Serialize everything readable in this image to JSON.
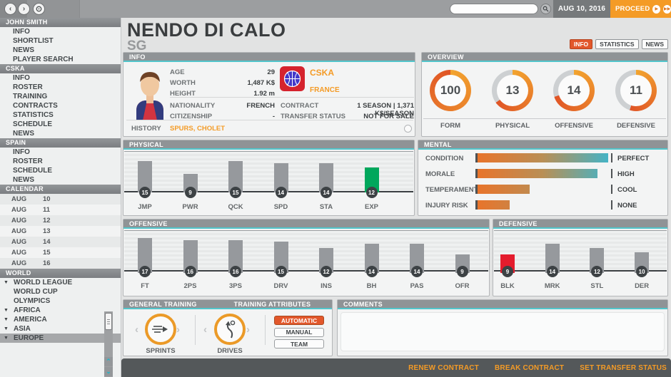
{
  "topbar": {
    "date": "AUG 10, 2016",
    "proceed_label": "PROCEED",
    "search_value": ""
  },
  "sidebar": {
    "sections": [
      {
        "title": "JOHN SMITH",
        "items": [
          "INFO",
          "SHORTLIST",
          "NEWS",
          "PLAYER SEARCH"
        ]
      },
      {
        "title": "CSKA",
        "items": [
          "INFO",
          "ROSTER",
          "TRAINING",
          "CONTRACTS",
          "STATISTICS",
          "SCHEDULE",
          "NEWS"
        ]
      },
      {
        "title": "SPAIN",
        "items": [
          "INFO",
          "ROSTER",
          "SCHEDULE",
          "NEWS"
        ]
      }
    ],
    "calendar": {
      "title": "CALENDAR",
      "rows": [
        [
          "AUG",
          "10"
        ],
        [
          "AUG",
          "11"
        ],
        [
          "AUG",
          "12"
        ],
        [
          "AUG",
          "13"
        ],
        [
          "AUG",
          "14"
        ],
        [
          "AUG",
          "15"
        ],
        [
          "AUG",
          "16"
        ]
      ]
    },
    "world": {
      "title": "WORLD",
      "items": [
        {
          "label": "WORLD LEAGUE",
          "expandable": true
        },
        {
          "label": "WORLD CUP",
          "expandable": false
        },
        {
          "label": "OLYMPICS",
          "expandable": false
        },
        {
          "label": "AFRICA",
          "expandable": true
        },
        {
          "label": "AMERICA",
          "expandable": true
        },
        {
          "label": "ASIA",
          "expandable": true
        },
        {
          "label": "EUROPE",
          "expandable": true
        }
      ]
    }
  },
  "player": {
    "name": "NENDO DI CALO",
    "position": "SG"
  },
  "tabs": [
    {
      "label": "INFO",
      "active": true
    },
    {
      "label": "STATISTICS",
      "active": false
    },
    {
      "label": "NEWS",
      "active": false
    }
  ],
  "info_panel": {
    "title": "INFO",
    "left_fields": [
      {
        "label": "AGE",
        "value": "29"
      },
      {
        "label": "WORTH",
        "value": "1,487 K$"
      },
      {
        "label": "HEIGHT",
        "value": "1.92 m"
      },
      {
        "label": "NATIONALITY",
        "value": "FRENCH"
      },
      {
        "label": "CITIZENSHIP",
        "value": "-"
      }
    ],
    "club": "CSKA",
    "country": "FRANCE",
    "right_fields": [
      {
        "label": "CONTRACT",
        "value": "1 SEASON | 1,371 K$/SEASON"
      },
      {
        "label": "TRANSFER STATUS",
        "value": "NOT FOR SALE"
      }
    ],
    "history_label": "HISTORY",
    "history_teams": [
      "SPURS",
      "CHOLET"
    ]
  },
  "overview_panel": {
    "title": "OVERVIEW",
    "gauges": [
      {
        "label": "FORM",
        "value": 100,
        "max": 100
      },
      {
        "label": "PHYSICAL",
        "value": 13,
        "max": 20
      },
      {
        "label": "OFFENSIVE",
        "value": 14,
        "max": 20
      },
      {
        "label": "DEFENSIVE",
        "value": 11,
        "max": 20
      }
    ]
  },
  "physical_panel": {
    "title": "PHYSICAL",
    "max": 20,
    "bars": [
      {
        "label": "JMP",
        "value": 15
      },
      {
        "label": "PWR",
        "value": 9
      },
      {
        "label": "QCK",
        "value": 15
      },
      {
        "label": "SPD",
        "value": 14
      },
      {
        "label": "STA",
        "value": 14
      },
      {
        "label": "EXP",
        "value": 12,
        "highlight": "green"
      }
    ]
  },
  "mental_panel": {
    "title": "MENTAL",
    "rows": [
      {
        "label": "CONDITION",
        "value": "PERFECT",
        "percent": 98
      },
      {
        "label": "MORALE",
        "value": "HIGH",
        "percent": 90
      },
      {
        "label": "TEMPERAMENT",
        "value": "COOL",
        "percent": 40
      },
      {
        "label": "INJURY RISK",
        "value": "NONE",
        "percent": 25
      }
    ]
  },
  "offensive_panel": {
    "title": "OFFENSIVE",
    "max": 20,
    "bars": [
      {
        "label": "FT",
        "value": 17
      },
      {
        "label": "2PS",
        "value": 16
      },
      {
        "label": "3PS",
        "value": 16
      },
      {
        "label": "DRV",
        "value": 15
      },
      {
        "label": "INS",
        "value": 12
      },
      {
        "label": "BH",
        "value": 14
      },
      {
        "label": "PAS",
        "value": 14
      },
      {
        "label": "OFR",
        "value": 9
      }
    ]
  },
  "defensive_panel": {
    "title": "DEFENSIVE",
    "max": 20,
    "bars": [
      {
        "label": "BLK",
        "value": 9,
        "highlight": "red"
      },
      {
        "label": "MRK",
        "value": 14
      },
      {
        "label": "STL",
        "value": 12
      },
      {
        "label": "DER",
        "value": 10
      }
    ]
  },
  "training_panel": {
    "title_left": "GENERAL TRAINING",
    "title_right": "TRAINING ATTRIBUTES",
    "general": {
      "label": "SPRINTS"
    },
    "attribute": {
      "label": "DRIVES"
    },
    "modes": [
      {
        "label": "AUTOMATIC",
        "active": true
      },
      {
        "label": "MANUAL",
        "active": false
      },
      {
        "label": "TEAM",
        "active": false
      }
    ]
  },
  "comments_panel": {
    "title": "COMMENTS",
    "text": ""
  },
  "footer": {
    "actions": [
      "RENEW CONTRACT",
      "BREAK CONTRACT",
      "SET TRANSFER STATUS"
    ]
  },
  "colors": {
    "accent_orange": "#F49B26",
    "accent_red": "#E2572B",
    "accent_teal": "#52C5CB",
    "bar_gray": "#96999D",
    "bar_green": "#00A75C",
    "bar_red": "#E41C2D",
    "gauge_arc_start": "#F2A42F",
    "gauge_arc_end": "#E05426"
  }
}
